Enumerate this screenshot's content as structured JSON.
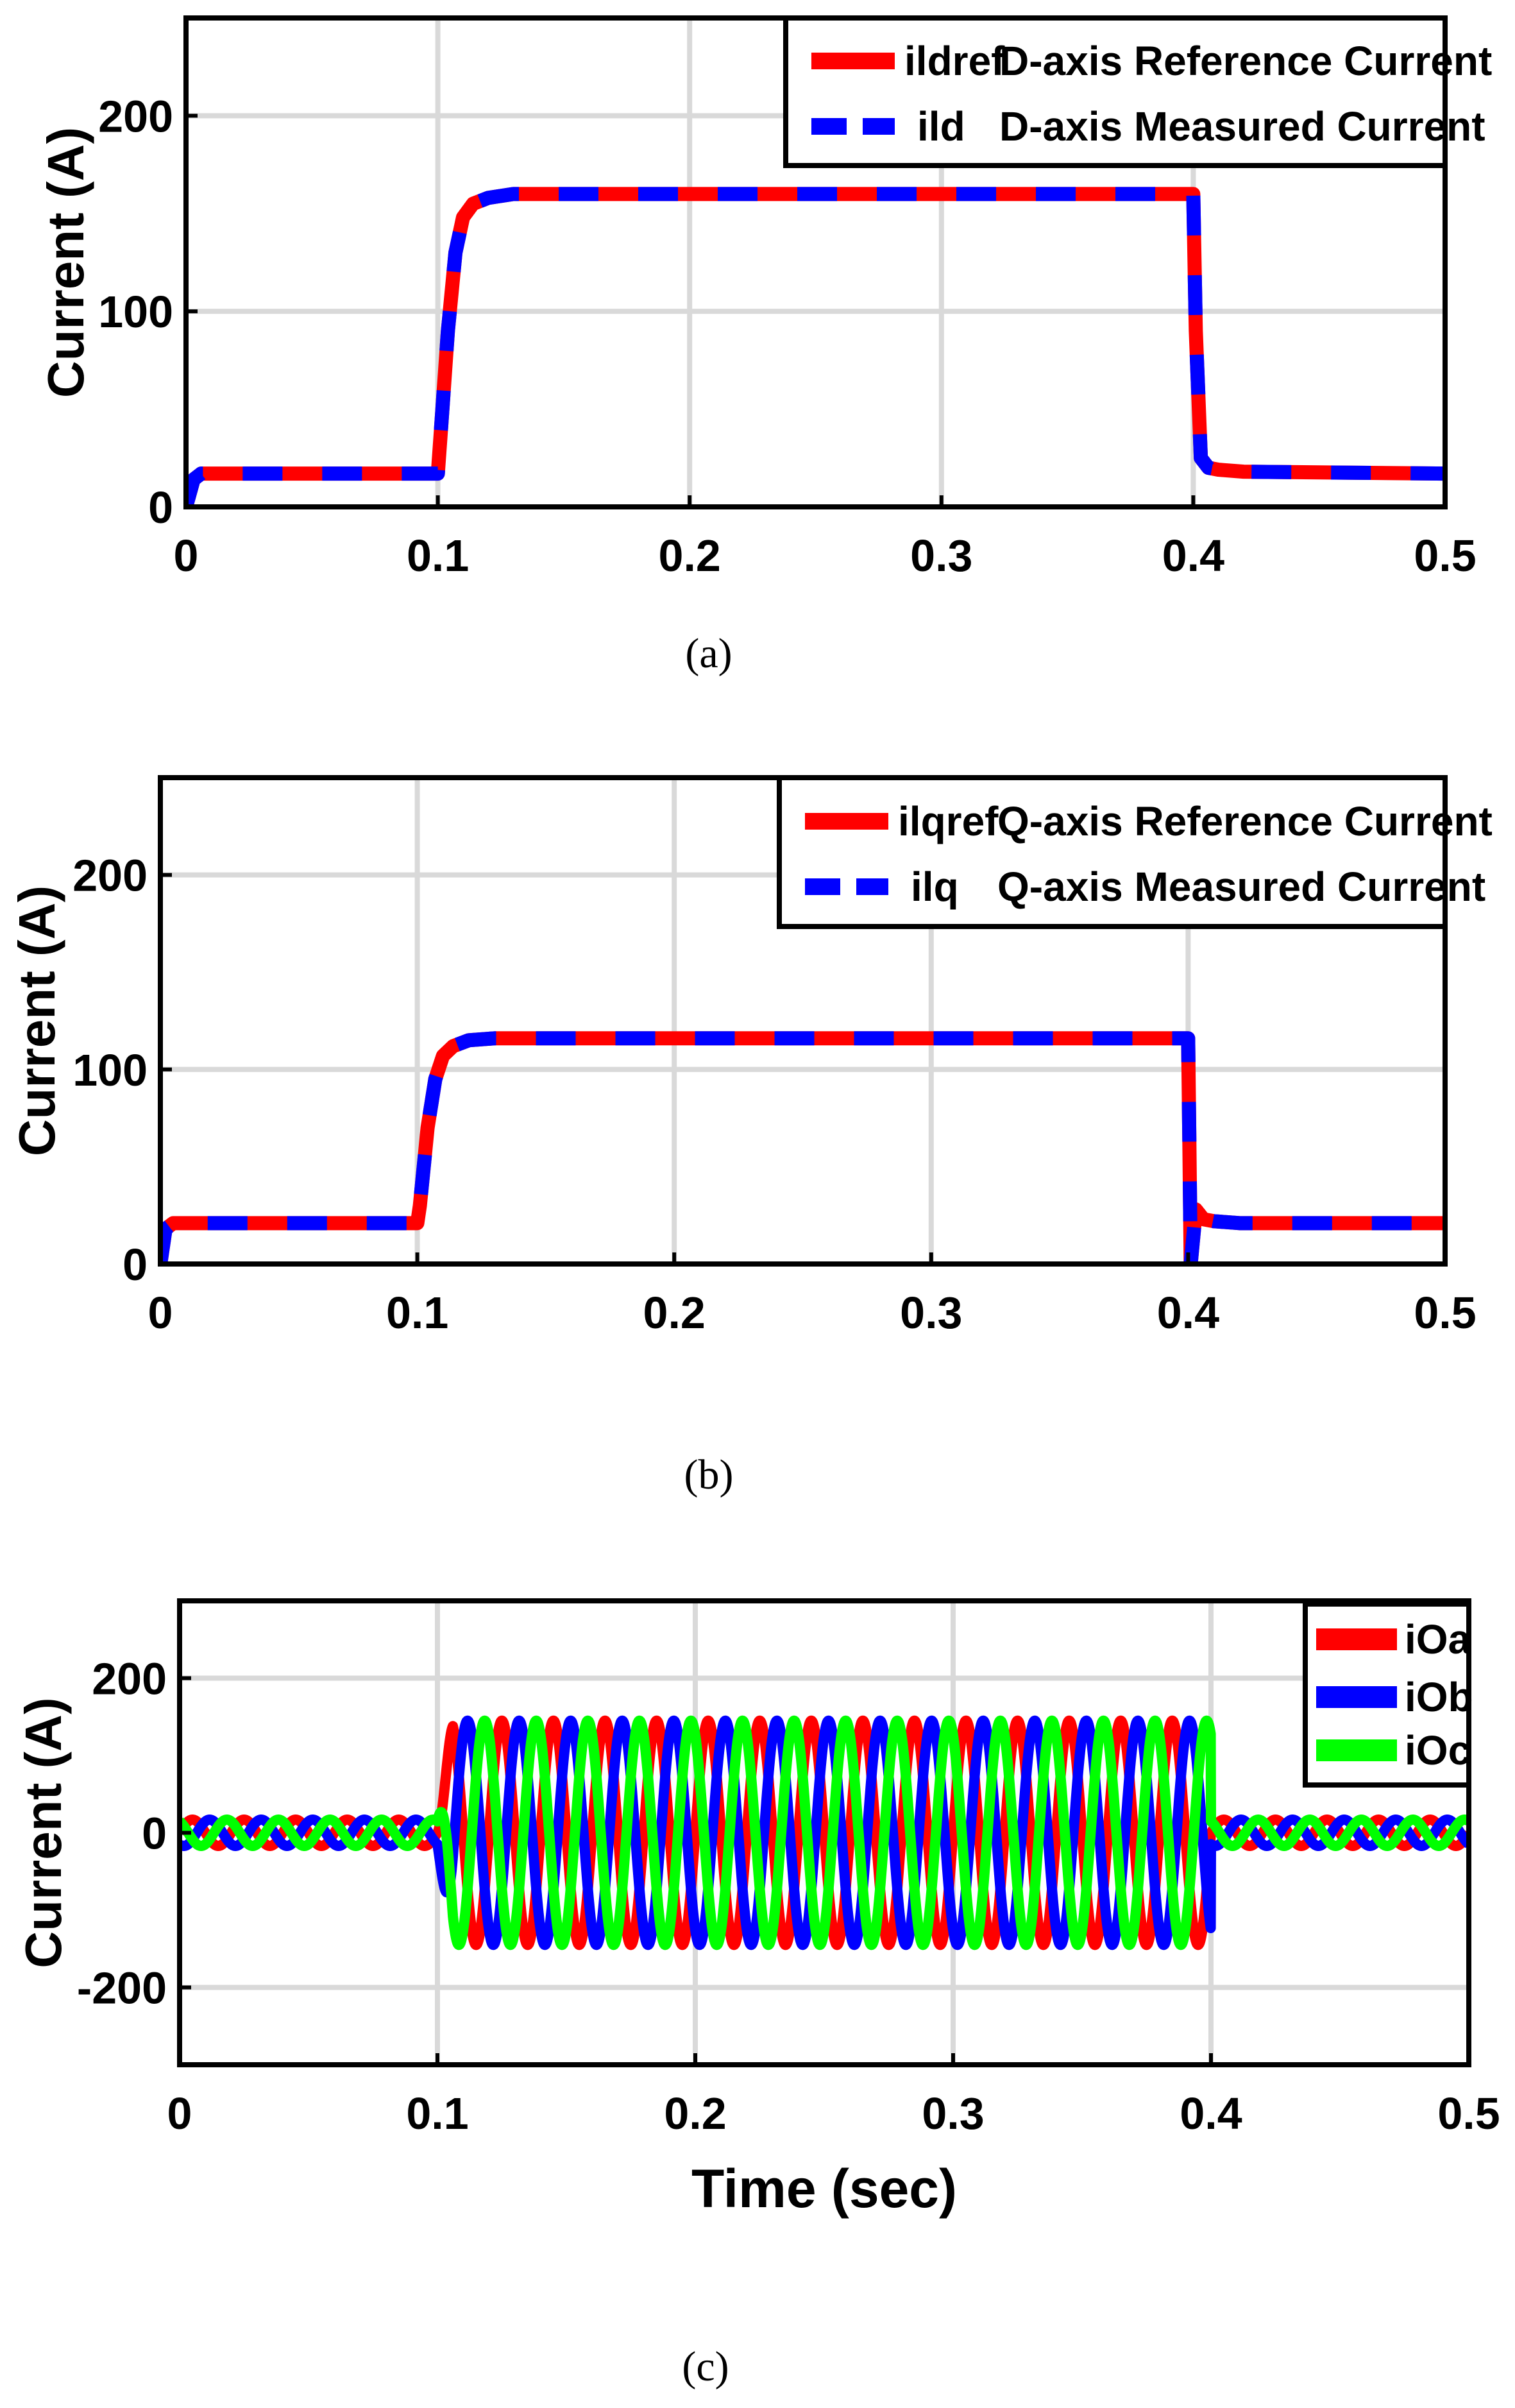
{
  "chart_data": [
    {
      "type": "line",
      "caption": "(a)",
      "xlabel": "",
      "ylabel": "Current (A)",
      "xlim": [
        0,
        0.5
      ],
      "ylim": [
        0,
        250
      ],
      "xticks": [
        0,
        0.1,
        0.2,
        0.3,
        0.4,
        0.5
      ],
      "xtick_labels": [
        "0",
        "0.1",
        "0.2",
        "0.3",
        "0.4",
        "0.5"
      ],
      "yticks": [
        0,
        100,
        200
      ],
      "ytick_labels": [
        "0",
        "100",
        "200"
      ],
      "grid": true,
      "legend_position": "top-right",
      "series": [
        {
          "name": "ildref D-axis Reference Current",
          "legend_name": "ildref",
          "legend_desc": "D-axis Reference Current",
          "color": "#ff0000",
          "style": "solid",
          "x": [
            0,
            0.003,
            0.006,
            0.1,
            0.101,
            0.104,
            0.107,
            0.11,
            0.114,
            0.12,
            0.13,
            0.4,
            0.401,
            0.403,
            0.406,
            0.41,
            0.42,
            0.5
          ],
          "y": [
            0,
            14,
            17,
            17,
            35,
            90,
            130,
            148,
            155,
            158,
            160,
            160,
            90,
            25,
            20,
            19,
            18,
            17
          ]
        },
        {
          "name": "ild D-axis Measured Current",
          "legend_name": "ild",
          "legend_desc": "D-axis Measured Current",
          "color": "#0000ff",
          "style": "dashed",
          "x": [
            0,
            0.003,
            0.006,
            0.1,
            0.101,
            0.104,
            0.107,
            0.11,
            0.114,
            0.12,
            0.13,
            0.4,
            0.401,
            0.403,
            0.406,
            0.41,
            0.42,
            0.5
          ],
          "y": [
            0,
            14,
            17,
            17,
            35,
            90,
            130,
            148,
            155,
            158,
            160,
            160,
            90,
            25,
            20,
            19,
            18,
            17
          ]
        }
      ]
    },
    {
      "type": "line",
      "caption": "(b)",
      "xlabel": "",
      "ylabel": "Current (A)",
      "xlim": [
        0,
        0.5
      ],
      "ylim": [
        0,
        250
      ],
      "xticks": [
        0,
        0.1,
        0.2,
        0.3,
        0.4,
        0.5
      ],
      "xtick_labels": [
        "0",
        "0.1",
        "0.2",
        "0.3",
        "0.4",
        "0.5"
      ],
      "yticks": [
        0,
        100,
        200
      ],
      "ytick_labels": [
        "0",
        "100",
        "200"
      ],
      "grid": true,
      "legend_position": "top-right",
      "series": [
        {
          "name": "ilqref Q-axis Reference Current",
          "legend_name": "ilqref",
          "legend_desc": "Q-axis Reference Current",
          "color": "#ff0000",
          "style": "solid",
          "x": [
            0,
            0.002,
            0.005,
            0.1,
            0.101,
            0.104,
            0.107,
            0.11,
            0.114,
            0.12,
            0.13,
            0.4,
            0.4005,
            0.401,
            0.403,
            0.406,
            0.41,
            0.42,
            0.5
          ],
          "y": [
            0,
            18,
            21,
            21,
            30,
            70,
            95,
            107,
            112,
            115,
            116,
            116,
            60,
            0,
            28,
            23,
            22,
            21,
            21
          ]
        },
        {
          "name": "ilq Q-axis Measured Current",
          "legend_name": "ilq",
          "legend_desc": "Q-axis Measured Current",
          "color": "#0000ff",
          "style": "dashed",
          "x": [
            0,
            0.002,
            0.005,
            0.1,
            0.101,
            0.104,
            0.107,
            0.11,
            0.114,
            0.12,
            0.13,
            0.4,
            0.4005,
            0.401,
            0.403,
            0.406,
            0.41,
            0.42,
            0.5
          ],
          "y": [
            0,
            18,
            21,
            21,
            30,
            70,
            95,
            107,
            112,
            115,
            116,
            116,
            60,
            0,
            28,
            23,
            22,
            21,
            21
          ]
        }
      ]
    },
    {
      "type": "line",
      "caption": "(c)",
      "xlabel": "Time (sec)",
      "ylabel": "Current (A)",
      "xlim": [
        0,
        0.5
      ],
      "ylim": [
        -300,
        300
      ],
      "xticks": [
        0,
        0.1,
        0.2,
        0.3,
        0.4,
        0.5
      ],
      "xtick_labels": [
        "0",
        "0.1",
        "0.2",
        "0.3",
        "0.4",
        "0.5"
      ],
      "yticks": [
        -200,
        0,
        200
      ],
      "ytick_labels": [
        "-200",
        "0",
        "200"
      ],
      "grid": true,
      "legend_position": "top-right",
      "signal": {
        "frequency_hz": 50,
        "amplitude_low": 17,
        "amplitude_high": 145,
        "step_on": 0.1,
        "step_off": 0.4,
        "phase_shift_deg": 120
      },
      "series": [
        {
          "name": "iOa",
          "color": "#ff0000",
          "phase_deg": 0
        },
        {
          "name": "iOb",
          "color": "#0000ff",
          "phase_deg": -120
        },
        {
          "name": "iOc",
          "color": "#00ff00",
          "phase_deg": 120
        }
      ]
    }
  ]
}
